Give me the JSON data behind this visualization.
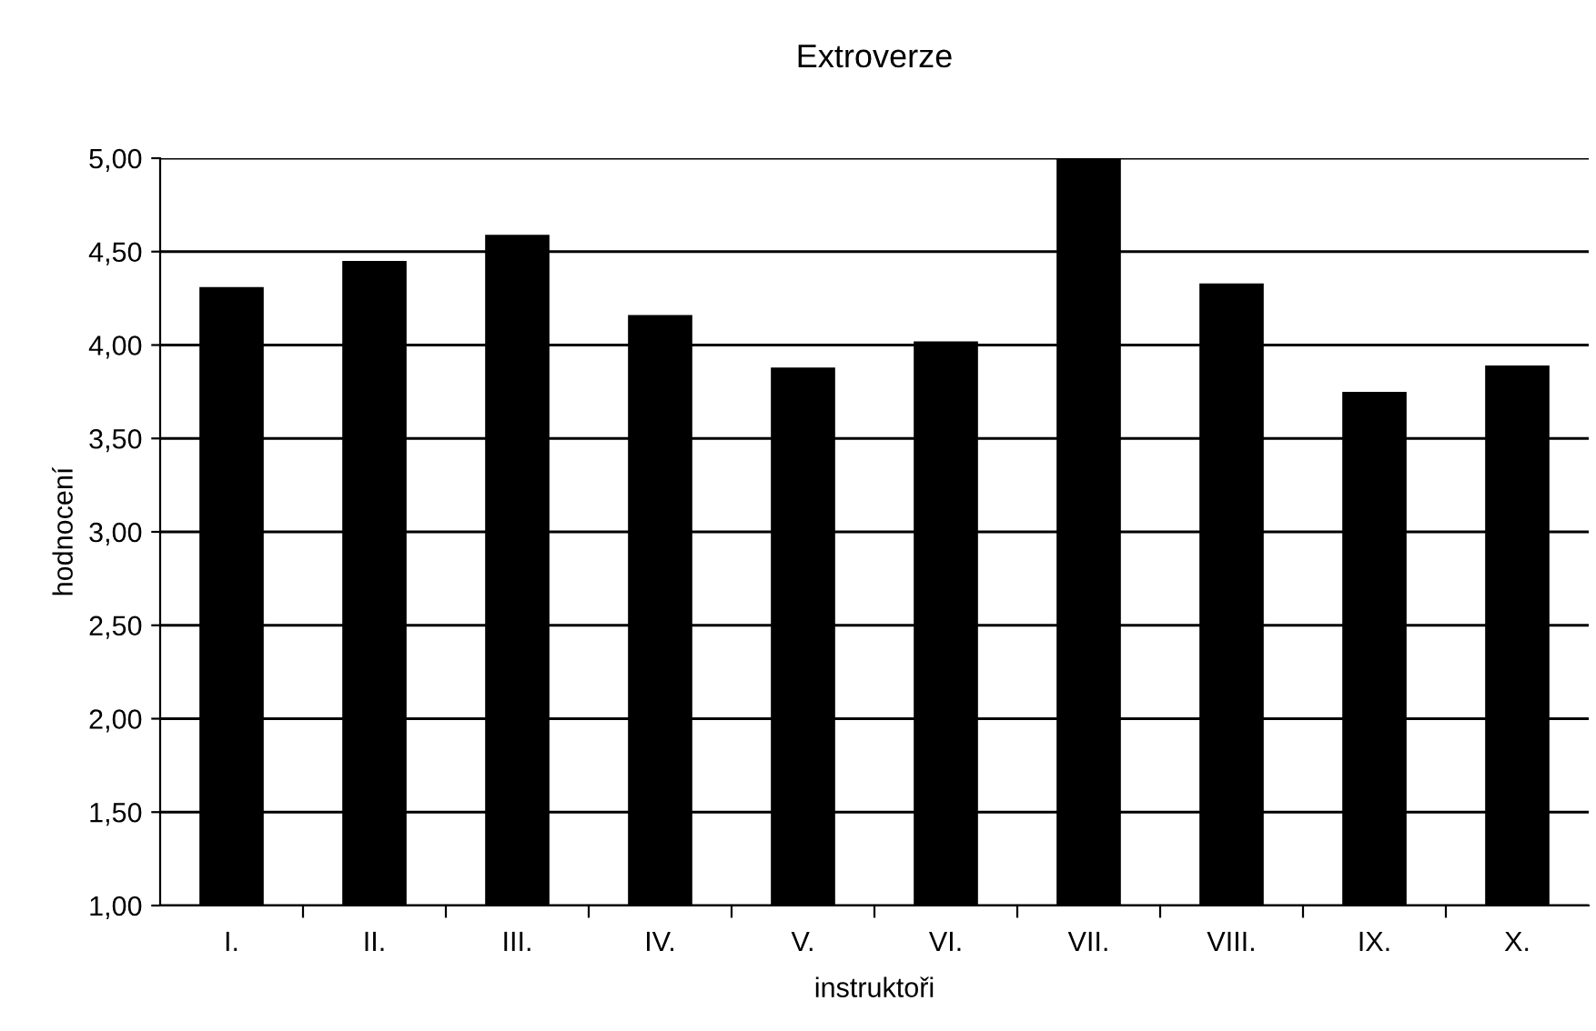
{
  "chart_data": {
    "type": "bar",
    "title": "Extroverze",
    "xlabel": "instruktoři",
    "ylabel": "hodnocení",
    "categories": [
      "I.",
      "II.",
      "III.",
      "IV.",
      "V.",
      "VI.",
      "VII.",
      "VIII.",
      "IX.",
      "X."
    ],
    "values": [
      4.31,
      4.45,
      4.59,
      4.16,
      3.88,
      4.02,
      5.0,
      4.33,
      3.75,
      3.89
    ],
    "color": "#000000",
    "ylim": [
      1,
      5
    ],
    "yticks": [
      {
        "value": 1,
        "label": "1,00"
      },
      {
        "value": 1.5,
        "label": "1,50"
      },
      {
        "value": 2,
        "label": "2,00"
      },
      {
        "value": 2.5,
        "label": "2,50"
      },
      {
        "value": 3,
        "label": "3,00"
      },
      {
        "value": 3.5,
        "label": "3,50"
      },
      {
        "value": 4,
        "label": "4,00"
      },
      {
        "value": 4.5,
        "label": "4,50"
      },
      {
        "value": 5,
        "label": "5,00"
      }
    ],
    "grid": "y",
    "legend": false
  }
}
